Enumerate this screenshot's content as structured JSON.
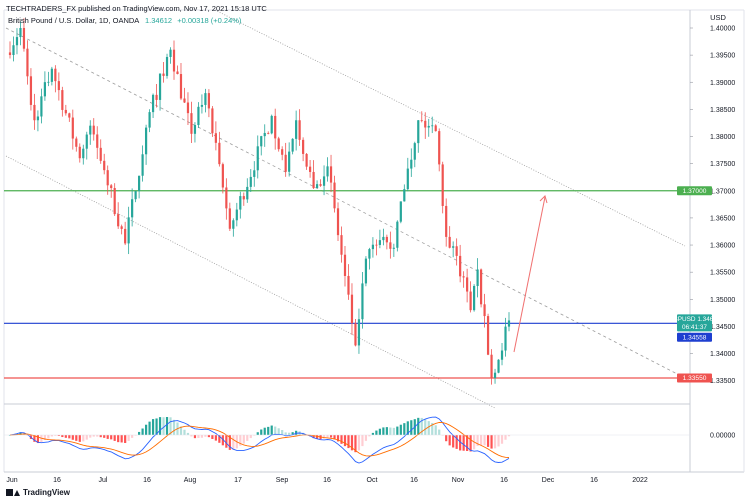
{
  "header": {
    "published_by": "TECHTRADERS_FX published on TradingView.com, Nov 17, 2021 15:18 UTC"
  },
  "legend": {
    "symbol": "British Pound / U.S. Dollar, 1D, OANDA",
    "last": "1.34612",
    "change": "+0.00318 (+0.24%)"
  },
  "footer": {
    "brand": "TradingView"
  },
  "chart_data": {
    "type": "candlestick",
    "currency": "USD",
    "ylim": [
      1.3326,
      1.4033
    ],
    "y_ticks": [
      "1.40000",
      "1.39500",
      "1.39000",
      "1.38500",
      "1.38000",
      "1.37500",
      "1.37000",
      "1.36500",
      "1.36000",
      "1.35500",
      "1.35000",
      "1.34500",
      "1.34000",
      "1.33500"
    ],
    "x_ticks": [
      "Jun",
      "16",
      "Jul",
      "16",
      "Aug",
      "17",
      "Sep",
      "16",
      "Oct",
      "16",
      "Nov",
      "16",
      "Dec",
      "16",
      "2022"
    ],
    "price_label": {
      "symbol": "GBPUSD",
      "value": "1.34612",
      "countdown": "06:41:37"
    },
    "levels": [
      {
        "value": 1.37,
        "label": "1.37000",
        "color": "#4caf50"
      },
      {
        "value": 1.34558,
        "label": "1.34558",
        "color": "#1e3fd0"
      },
      {
        "value": 1.3355,
        "label": "1.33550",
        "color": "#ef5350"
      }
    ],
    "candles_first_close": 1.3955,
    "candles_legs": [
      {
        "target": 1.4,
        "bars": 4
      },
      {
        "target": 1.383,
        "bars": 4
      },
      {
        "target": 1.3925,
        "bars": 5
      },
      {
        "target": 1.376,
        "bars": 8
      },
      {
        "target": 1.382,
        "bars": 3
      },
      {
        "target": 1.3738,
        "bars": 4
      },
      {
        "target": 1.3603,
        "bars": 6
      },
      {
        "target": 1.3845,
        "bars": 7
      },
      {
        "target": 1.396,
        "bars": 6
      },
      {
        "target": 1.3805,
        "bars": 6
      },
      {
        "target": 1.388,
        "bars": 4
      },
      {
        "target": 1.363,
        "bars": 7
      },
      {
        "target": 1.3838,
        "bars": 12
      },
      {
        "target": 1.3735,
        "bars": 4
      },
      {
        "target": 1.383,
        "bars": 3
      },
      {
        "target": 1.3705,
        "bars": 5
      },
      {
        "target": 1.3745,
        "bars": 4
      },
      {
        "target": 1.3415,
        "bars": 8
      },
      {
        "target": 1.3575,
        "bars": 3
      },
      {
        "target": 1.3615,
        "bars": 5
      },
      {
        "target": 1.3595,
        "bars": 3
      },
      {
        "target": 1.3703,
        "bars": 3
      },
      {
        "target": 1.383,
        "bars": 4
      },
      {
        "target": 1.381,
        "bars": 5
      },
      {
        "target": 1.3615,
        "bars": 3
      },
      {
        "target": 1.358,
        "bars": 3
      },
      {
        "target": 1.348,
        "bars": 4
      },
      {
        "target": 1.3555,
        "bars": 2
      },
      {
        "target": 1.3355,
        "bars": 4
      },
      {
        "target": 1.3461,
        "bars": 5
      }
    ],
    "indicator": {
      "zero_label": "0.00000",
      "colors": {
        "hist_up_strong": "#26a69a",
        "hist_up_weak": "#b2dfdb",
        "hist_down_strong": "#ff5252",
        "hist_down_weak": "#ffcdd2",
        "macd_line": "#2962ff",
        "signal_line": "#ff6d00"
      }
    },
    "colors": {
      "up": "#26a69a",
      "down": "#ef5350",
      "trend": "#999999",
      "arrow": "#f07070"
    }
  }
}
